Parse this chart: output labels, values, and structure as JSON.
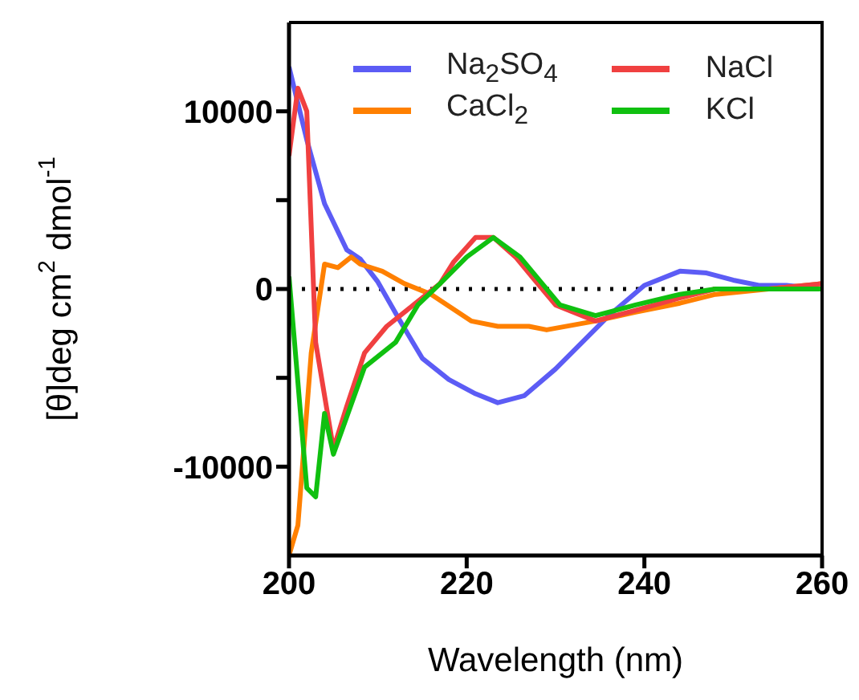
{
  "chart_data": {
    "type": "line",
    "xlabel": "Wavelength (nm)",
    "ylabel": "[θ]deg cm$^{2}$ dmol$^{-1}$",
    "xlim": [
      200,
      260
    ],
    "xticks": [
      200,
      220,
      240,
      260
    ],
    "ylim": [
      -15000,
      15000
    ],
    "yticks": [
      -10000,
      {
        "value": -5000,
        "label": null
      },
      0,
      {
        "value": 5000,
        "label": null
      },
      10000
    ],
    "legend": "top",
    "marker": "none",
    "line_style": "solid",
    "ref_lines": [
      {
        "axis": "y",
        "value": 0,
        "color": "#000000",
        "line_style": "dotted"
      }
    ],
    "series": [
      {
        "name": "Na$_{2}$SO$_{4}$",
        "color": "#5c5cf5",
        "x": [
          200,
          202,
          204,
          206.5,
          208,
          210,
          212.5,
          215,
          218,
          221,
          223.5,
          226.5,
          230,
          233,
          236,
          240,
          244,
          247,
          250,
          253,
          256,
          260
        ],
        "values": [
          12500,
          8400,
          4800,
          2200,
          1700,
          400,
          -1800,
          -3900,
          -5100,
          -5900,
          -6400,
          -6000,
          -4500,
          -3000,
          -1500,
          200,
          1000,
          900,
          500,
          200,
          200,
          0
        ]
      },
      {
        "name": "CaCl$_{2}$",
        "color": "#ff8000",
        "x": [
          200,
          201,
          202.5,
          204,
          205.5,
          207,
          208,
          210.5,
          213,
          216,
          220.5,
          223.5,
          227,
          229,
          234.5,
          239,
          244,
          248,
          254,
          260
        ],
        "values": [
          -15000,
          -13300,
          -3600,
          1400,
          1200,
          1800,
          1400,
          1000,
          300,
          -300,
          -1800,
          -2100,
          -2100,
          -2300,
          -1800,
          -1300,
          -800,
          -300,
          0,
          300
        ]
      },
      {
        "name": "NaCl",
        "color": "#f04040",
        "x": [
          200,
          201,
          202,
          203,
          205,
          206.5,
          208.5,
          211,
          214,
          217,
          218.5,
          221,
          223,
          225.5,
          227.5,
          230,
          234.5,
          239,
          244,
          248,
          254,
          260
        ],
        "values": [
          7500,
          11300,
          10000,
          -3000,
          -9000,
          -6600,
          -3600,
          -2100,
          -900,
          300,
          1500,
          2900,
          2900,
          1800,
          600,
          -900,
          -1800,
          -1200,
          -500,
          0,
          0,
          300
        ]
      },
      {
        "name": "KCl",
        "color": "#10c010",
        "x": [
          200,
          202,
          203,
          204,
          205,
          208.5,
          212,
          214.5,
          217,
          220,
          223,
          226,
          230.5,
          234.5,
          239,
          244,
          248,
          260
        ],
        "values": [
          700,
          -11200,
          -11700,
          -7000,
          -9300,
          -4400,
          -3000,
          -900,
          300,
          1800,
          2900,
          1800,
          -900,
          -1500,
          -900,
          -300,
          0,
          0
        ]
      }
    ]
  }
}
